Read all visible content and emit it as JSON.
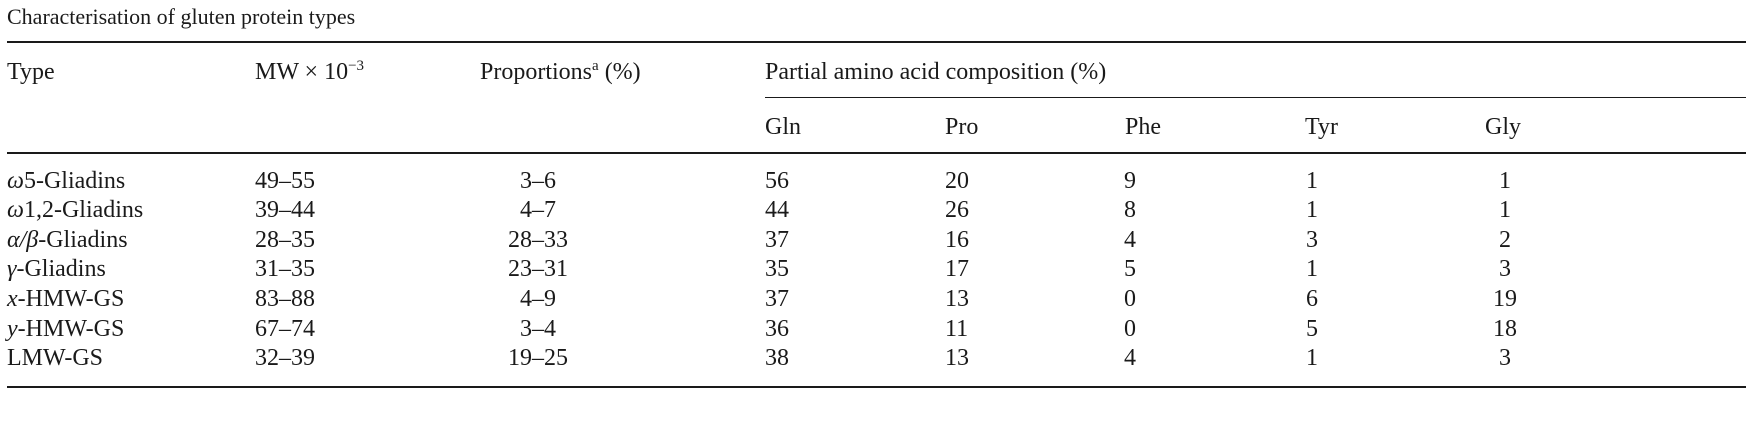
{
  "caption": "Characterisation of gluten protein types",
  "header": {
    "type": "Type",
    "mw_prefix": "MW × 10",
    "mw_exp": "−3",
    "proportions": "Proportions",
    "proportions_sup": "a",
    "proportions_unit": " (%)",
    "group": "Partial amino acid composition (%)",
    "sub": [
      "Gln",
      "Pro",
      "Phe",
      "Tyr",
      "Gly"
    ]
  },
  "rows": [
    {
      "type_greek": "ω",
      "type_rest": "5-Gliadins",
      "mw": "49–55",
      "prop": "3–6",
      "gln": "56",
      "pro": "20",
      "phe": "9",
      "tyr": "1",
      "gly": "1"
    },
    {
      "type_greek": "ω",
      "type_rest": "1,2-Gliadins",
      "mw": "39–44",
      "prop": "4–7",
      "gln": "44",
      "pro": "26",
      "phe": "8",
      "tyr": "1",
      "gly": "1"
    },
    {
      "type_greek": "α/β",
      "type_rest": "-Gliadins",
      "mw": "28–35",
      "prop": "28–33",
      "gln": "37",
      "pro": "16",
      "phe": "4",
      "tyr": "3",
      "gly": "2"
    },
    {
      "type_greek": "γ",
      "type_rest": "-Gliadins",
      "mw": "31–35",
      "prop": "23–31",
      "gln": "35",
      "pro": "17",
      "phe": "5",
      "tyr": "1",
      "gly": "3"
    },
    {
      "type_greek": "x",
      "type_rest": "-HMW-GS",
      "mw": "83–88",
      "prop": "4–9",
      "gln": "37",
      "pro": "13",
      "phe": "0",
      "tyr": "6",
      "gly": "19"
    },
    {
      "type_greek": "y",
      "type_rest": "-HMW-GS",
      "mw": "67–74",
      "prop": "3–4",
      "gln": "36",
      "pro": "11",
      "phe": "0",
      "tyr": "5",
      "gly": "18"
    },
    {
      "type_greek": "",
      "type_rest": "LMW-GS",
      "mw": "32–39",
      "prop": "19–25",
      "gln": "38",
      "pro": "13",
      "phe": "4",
      "tyr": "1",
      "gly": "3"
    }
  ]
}
